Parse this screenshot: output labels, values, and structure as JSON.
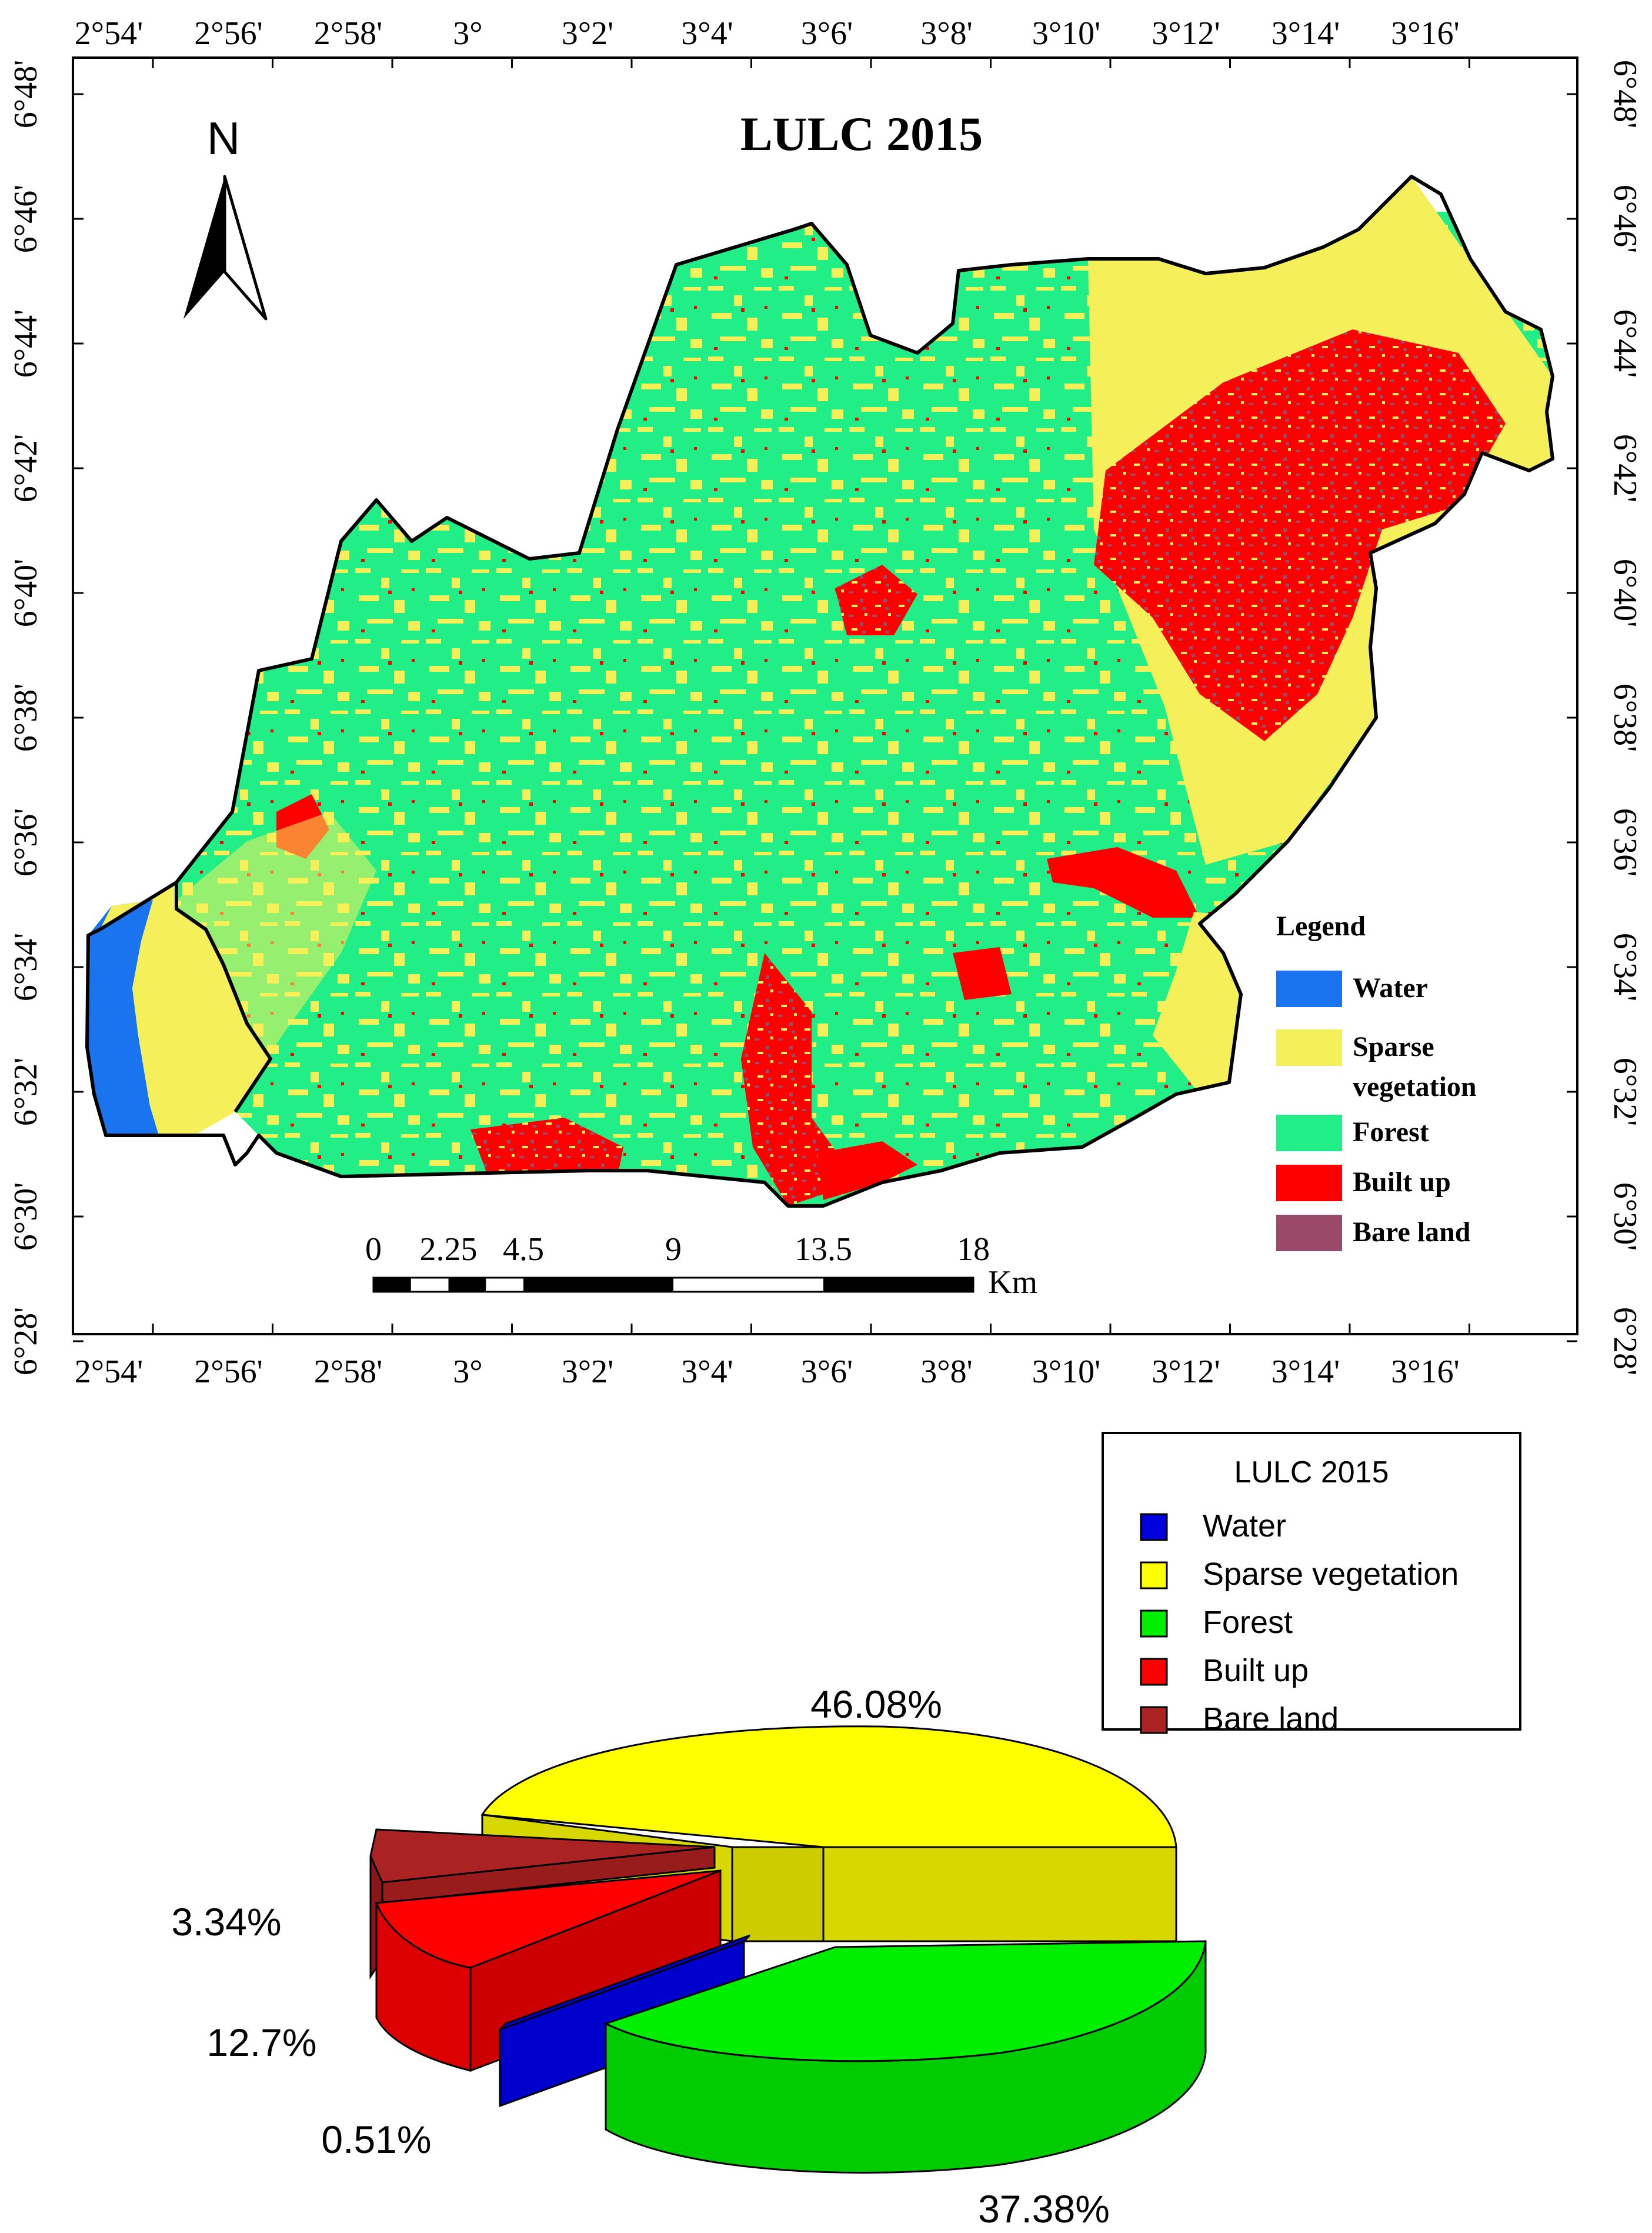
{
  "map": {
    "title": "LULC 2015",
    "north_label": "N",
    "lon_ticks": [
      "2°54'",
      "2°56'",
      "2°58'",
      "3°",
      "3°2'",
      "3°4'",
      "3°6'",
      "3°8'",
      "3°10'",
      "3°12'",
      "3°14'",
      "3°16'"
    ],
    "lat_ticks": [
      "6°48'",
      "6°46'",
      "6°44'",
      "6°42'",
      "6°40'",
      "6°38'",
      "6°36'",
      "6°34'",
      "6°32'",
      "6°30'",
      "6°28'"
    ],
    "legend": {
      "title": "Legend",
      "items": [
        {
          "label": "Water",
          "color": "#1a74f0"
        },
        {
          "label": "Sparse",
          "label2": "vegetation",
          "color": "#f5f05a"
        },
        {
          "label": "Forest",
          "color": "#22ee88"
        },
        {
          "label": "Built up",
          "color": "#ff0000"
        },
        {
          "label": "Bare land",
          "color": "#9a4a68"
        }
      ]
    },
    "scale_bar": {
      "ticks": [
        "0",
        "2.25",
        "4.5",
        "9",
        "13.5",
        "18"
      ],
      "unit": "Km"
    }
  },
  "chart_data": {
    "type": "pie",
    "title": "LULC 2015",
    "legend_placement": "top-right",
    "slices": [
      {
        "label": "Water",
        "value": 0.51,
        "value_label": "0.51%",
        "color": "#0000dd"
      },
      {
        "label": "Sparse vegetation",
        "value": 46.08,
        "value_label": "46.08%",
        "color": "#ffff00"
      },
      {
        "label": "Forest",
        "value": 37.38,
        "value_label": "37.38%",
        "color": "#00ee00"
      },
      {
        "label": "Built up",
        "value": 12.7,
        "value_label": "12.7%",
        "color": "#ff0000"
      },
      {
        "label": "Bare land",
        "value": 3.34,
        "value_label": "3.34%",
        "color": "#aa2222"
      }
    ]
  }
}
